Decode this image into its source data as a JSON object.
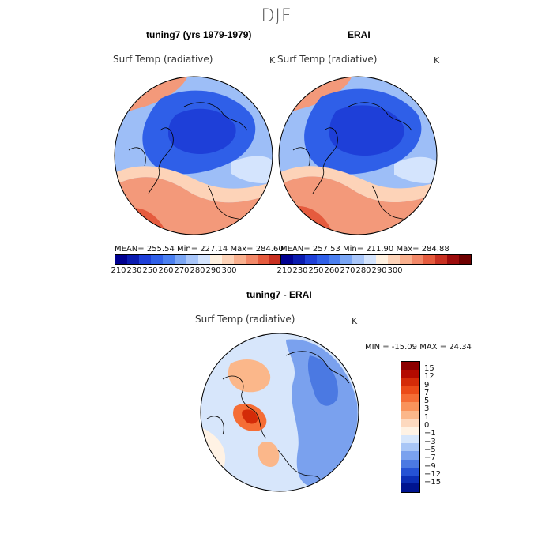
{
  "figure": {
    "season": "DJF",
    "panels": [
      {
        "title": "tuning7 (yrs 1979-1979)",
        "variable": "Surf Temp (radiative)",
        "units": "K",
        "stats": "MEAN= 255.54   Min= 227.14   Max= 284.60"
      },
      {
        "title": "ERAI",
        "variable": "Surf Temp (radiative)",
        "units": "K",
        "stats": "MEAN= 257.53   Min= 211.90   Max= 284.88"
      },
      {
        "title": "tuning7 - ERAI",
        "variable": "Surf Temp (radiative)",
        "units": "K",
        "stats": "MIN = -15.09 MAX =  24.34"
      }
    ]
  },
  "chart_data": [
    {
      "type": "heatmap",
      "projection": "north polar stereographic",
      "title": "tuning7 (yrs 1979-1979)",
      "variable": "Surf Temp (radiative)",
      "units": "K",
      "mean": 255.54,
      "min": 227.14,
      "max": 284.6,
      "colorbar_ticks": [
        "210",
        "230",
        "250",
        "260",
        "270",
        "280",
        "290",
        "300"
      ],
      "colorbar_colors": [
        "#000090",
        "#0a1bb0",
        "#1e3fd8",
        "#2f5fe8",
        "#4a7ff0",
        "#7aa6f5",
        "#a8c6fa",
        "#d4e4fd",
        "#fff1e0",
        "#fdd3b8",
        "#f9b08e",
        "#f28868",
        "#e55b3e",
        "#c83021",
        "#9c0c0c",
        "#6e0000"
      ]
    },
    {
      "type": "heatmap",
      "projection": "north polar stereographic",
      "title": "ERAI",
      "variable": "Surf Temp (radiative)",
      "units": "K",
      "mean": 257.53,
      "min": 211.9,
      "max": 284.88,
      "colorbar_ticks": [
        "210",
        "230",
        "250",
        "260",
        "270",
        "280",
        "290",
        "300"
      ],
      "colorbar_colors": [
        "#000090",
        "#0a1bb0",
        "#1e3fd8",
        "#2f5fe8",
        "#4a7ff0",
        "#7aa6f5",
        "#a8c6fa",
        "#d4e4fd",
        "#fff1e0",
        "#fdd3b8",
        "#f9b08e",
        "#f28868",
        "#e55b3e",
        "#c83021",
        "#9c0c0c",
        "#6e0000"
      ]
    },
    {
      "type": "heatmap",
      "projection": "north polar stereographic",
      "title": "tuning7 - ERAI",
      "variable": "Surf Temp (radiative)",
      "units": "K",
      "min": -15.09,
      "max": 24.34,
      "colorbar_ticks": [
        "15",
        "12",
        "9",
        "7",
        "5",
        "3",
        "1",
        "0",
        "−1",
        "−3",
        "−5",
        "−7",
        "−9",
        "−12",
        "−15"
      ],
      "colorbar_colors": [
        "#8c0000",
        "#b40a00",
        "#d42b08",
        "#eb4b18",
        "#f56d35",
        "#f9935b",
        "#fbb78a",
        "#fdd9bf",
        "#fff2e4",
        "#d7e6fb",
        "#a9c6f6",
        "#7aa1ee",
        "#4b79e2",
        "#2552d4",
        "#0c2fb6",
        "#001490"
      ]
    }
  ]
}
